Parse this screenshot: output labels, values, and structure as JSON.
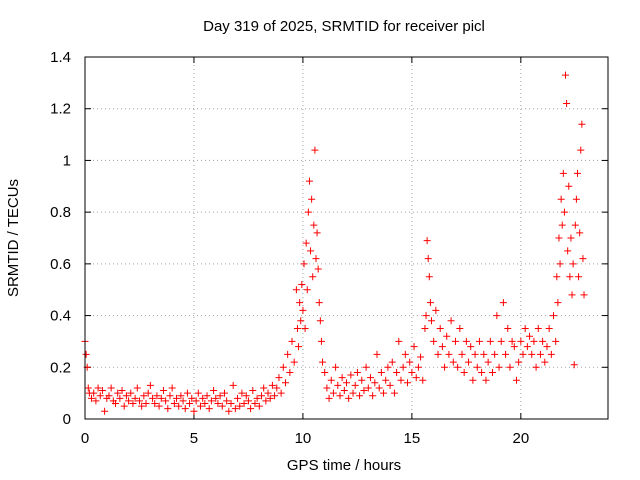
{
  "chart_data": {
    "type": "scatter",
    "title": "Day 319 of 2025, SRMTID for receiver picl",
    "xlabel": "GPS time / hours",
    "ylabel": "SRMTID / TECUs",
    "xlim": [
      0,
      24
    ],
    "ylim": [
      0,
      1.4
    ],
    "xticks": [
      0,
      5,
      10,
      15,
      20
    ],
    "yticks": [
      0,
      0.2,
      0.4,
      0.6,
      0.8,
      1,
      1.2,
      1.4
    ],
    "xtick_labels": [
      "0",
      "5",
      "10",
      "15",
      "20"
    ],
    "ytick_labels": [
      "0",
      "0.2",
      "0.4",
      "0.6",
      "0.8",
      "1",
      "1.2",
      "1.4"
    ],
    "grid": true,
    "marker": "+",
    "series": [
      {
        "name": "SRMTID",
        "color": "#ff0000",
        "points": [
          [
            0.0,
            0.3
          ],
          [
            0.05,
            0.25
          ],
          [
            0.1,
            0.2
          ],
          [
            0.15,
            0.12
          ],
          [
            0.2,
            0.1
          ],
          [
            0.3,
            0.08
          ],
          [
            0.4,
            0.1
          ],
          [
            0.5,
            0.07
          ],
          [
            0.6,
            0.12
          ],
          [
            0.7,
            0.09
          ],
          [
            0.8,
            0.11
          ],
          [
            0.9,
            0.03
          ],
          [
            1.0,
            0.08
          ],
          [
            1.1,
            0.09
          ],
          [
            1.2,
            0.12
          ],
          [
            1.3,
            0.07
          ],
          [
            1.4,
            0.06
          ],
          [
            1.5,
            0.1
          ],
          [
            1.6,
            0.08
          ],
          [
            1.7,
            0.11
          ],
          [
            1.8,
            0.05
          ],
          [
            1.9,
            0.09
          ],
          [
            2.0,
            0.07
          ],
          [
            2.1,
            0.1
          ],
          [
            2.2,
            0.06
          ],
          [
            2.3,
            0.08
          ],
          [
            2.4,
            0.12
          ],
          [
            2.5,
            0.07
          ],
          [
            2.6,
            0.05
          ],
          [
            2.7,
            0.09
          ],
          [
            2.8,
            0.06
          ],
          [
            2.9,
            0.1
          ],
          [
            3.0,
            0.13
          ],
          [
            3.1,
            0.08
          ],
          [
            3.2,
            0.06
          ],
          [
            3.3,
            0.09
          ],
          [
            3.4,
            0.05
          ],
          [
            3.5,
            0.08
          ],
          [
            3.6,
            0.11
          ],
          [
            3.7,
            0.07
          ],
          [
            3.8,
            0.04
          ],
          [
            3.9,
            0.09
          ],
          [
            4.0,
            0.12
          ],
          [
            4.1,
            0.06
          ],
          [
            4.2,
            0.08
          ],
          [
            4.3,
            0.05
          ],
          [
            4.4,
            0.09
          ],
          [
            4.5,
            0.07
          ],
          [
            4.6,
            0.04
          ],
          [
            4.7,
            0.1
          ],
          [
            4.8,
            0.06
          ],
          [
            4.9,
            0.08
          ],
          [
            5.0,
            0.03
          ],
          [
            5.1,
            0.07
          ],
          [
            5.2,
            0.1
          ],
          [
            5.3,
            0.05
          ],
          [
            5.4,
            0.08
          ],
          [
            5.5,
            0.06
          ],
          [
            5.6,
            0.09
          ],
          [
            5.7,
            0.04
          ],
          [
            5.8,
            0.07
          ],
          [
            5.9,
            0.11
          ],
          [
            6.0,
            0.08
          ],
          [
            6.1,
            0.06
          ],
          [
            6.2,
            0.09
          ],
          [
            6.3,
            0.05
          ],
          [
            6.4,
            0.1
          ],
          [
            6.5,
            0.07
          ],
          [
            6.6,
            0.03
          ],
          [
            6.7,
            0.06
          ],
          [
            6.8,
            0.13
          ],
          [
            6.9,
            0.04
          ],
          [
            7.0,
            0.08
          ],
          [
            7.1,
            0.05
          ],
          [
            7.2,
            0.1
          ],
          [
            7.3,
            0.06
          ],
          [
            7.4,
            0.09
          ],
          [
            7.5,
            0.07
          ],
          [
            7.6,
            0.04
          ],
          [
            7.7,
            0.11
          ],
          [
            7.8,
            0.06
          ],
          [
            7.9,
            0.08
          ],
          [
            8.0,
            0.05
          ],
          [
            8.1,
            0.09
          ],
          [
            8.2,
            0.12
          ],
          [
            8.3,
            0.07
          ],
          [
            8.4,
            0.1
          ],
          [
            8.5,
            0.08
          ],
          [
            8.6,
            0.13
          ],
          [
            8.7,
            0.09
          ],
          [
            8.8,
            0.12
          ],
          [
            8.9,
            0.16
          ],
          [
            9.0,
            0.1
          ],
          [
            9.1,
            0.2
          ],
          [
            9.2,
            0.14
          ],
          [
            9.3,
            0.25
          ],
          [
            9.4,
            0.18
          ],
          [
            9.5,
            0.3
          ],
          [
            9.6,
            0.22
          ],
          [
            9.7,
            0.5
          ],
          [
            9.75,
            0.35
          ],
          [
            9.8,
            0.28
          ],
          [
            9.85,
            0.45
          ],
          [
            9.9,
            0.38
          ],
          [
            9.95,
            0.52
          ],
          [
            10.0,
            0.42
          ],
          [
            10.05,
            0.6
          ],
          [
            10.1,
            0.35
          ],
          [
            10.15,
            0.68
          ],
          [
            10.2,
            0.5
          ],
          [
            10.25,
            0.8
          ],
          [
            10.3,
            0.92
          ],
          [
            10.35,
            0.65
          ],
          [
            10.4,
            0.85
          ],
          [
            10.45,
            0.55
          ],
          [
            10.5,
            0.75
          ],
          [
            10.55,
            1.04
          ],
          [
            10.6,
            0.62
          ],
          [
            10.65,
            0.72
          ],
          [
            10.7,
            0.58
          ],
          [
            10.75,
            0.45
          ],
          [
            10.8,
            0.38
          ],
          [
            10.85,
            0.3
          ],
          [
            10.9,
            0.22
          ],
          [
            11.0,
            0.18
          ],
          [
            11.1,
            0.12
          ],
          [
            11.2,
            0.08
          ],
          [
            11.3,
            0.15
          ],
          [
            11.4,
            0.1
          ],
          [
            11.5,
            0.2
          ],
          [
            11.6,
            0.13
          ],
          [
            11.7,
            0.09
          ],
          [
            11.8,
            0.16
          ],
          [
            11.9,
            0.11
          ],
          [
            12.0,
            0.14
          ],
          [
            12.1,
            0.08
          ],
          [
            12.2,
            0.17
          ],
          [
            12.3,
            0.1
          ],
          [
            12.4,
            0.13
          ],
          [
            12.5,
            0.18
          ],
          [
            12.6,
            0.09
          ],
          [
            12.7,
            0.15
          ],
          [
            12.8,
            0.11
          ],
          [
            12.9,
            0.2
          ],
          [
            13.0,
            0.12
          ],
          [
            13.1,
            0.16
          ],
          [
            13.2,
            0.09
          ],
          [
            13.3,
            0.14
          ],
          [
            13.4,
            0.25
          ],
          [
            13.5,
            0.12
          ],
          [
            13.6,
            0.18
          ],
          [
            13.7,
            0.1
          ],
          [
            13.8,
            0.15
          ],
          [
            13.9,
            0.2
          ],
          [
            14.0,
            0.13
          ],
          [
            14.1,
            0.22
          ],
          [
            14.2,
            0.1
          ],
          [
            14.3,
            0.18
          ],
          [
            14.4,
            0.3
          ],
          [
            14.5,
            0.15
          ],
          [
            14.6,
            0.2
          ],
          [
            14.7,
            0.25
          ],
          [
            14.8,
            0.14
          ],
          [
            14.9,
            0.22
          ],
          [
            15.0,
            0.18
          ],
          [
            15.1,
            0.28
          ],
          [
            15.2,
            0.16
          ],
          [
            15.3,
            0.2
          ],
          [
            15.4,
            0.24
          ],
          [
            15.5,
            0.15
          ],
          [
            15.6,
            0.35
          ],
          [
            15.65,
            0.4
          ],
          [
            15.7,
            0.69
          ],
          [
            15.75,
            0.62
          ],
          [
            15.8,
            0.55
          ],
          [
            15.85,
            0.45
          ],
          [
            15.9,
            0.38
          ],
          [
            16.0,
            0.3
          ],
          [
            16.1,
            0.42
          ],
          [
            16.2,
            0.25
          ],
          [
            16.3,
            0.35
          ],
          [
            16.4,
            0.28
          ],
          [
            16.5,
            0.2
          ],
          [
            16.6,
            0.32
          ],
          [
            16.7,
            0.25
          ],
          [
            16.8,
            0.38
          ],
          [
            16.9,
            0.22
          ],
          [
            17.0,
            0.3
          ],
          [
            17.1,
            0.2
          ],
          [
            17.2,
            0.35
          ],
          [
            17.3,
            0.25
          ],
          [
            17.4,
            0.18
          ],
          [
            17.5,
            0.3
          ],
          [
            17.6,
            0.22
          ],
          [
            17.7,
            0.28
          ],
          [
            17.8,
            0.15
          ],
          [
            17.9,
            0.25
          ],
          [
            18.0,
            0.2
          ],
          [
            18.1,
            0.3
          ],
          [
            18.2,
            0.18
          ],
          [
            18.3,
            0.25
          ],
          [
            18.4,
            0.15
          ],
          [
            18.5,
            0.22
          ],
          [
            18.6,
            0.3
          ],
          [
            18.7,
            0.18
          ],
          [
            18.8,
            0.25
          ],
          [
            18.9,
            0.4
          ],
          [
            19.0,
            0.2
          ],
          [
            19.1,
            0.3
          ],
          [
            19.2,
            0.45
          ],
          [
            19.3,
            0.25
          ],
          [
            19.4,
            0.35
          ],
          [
            19.5,
            0.2
          ],
          [
            19.6,
            0.3
          ],
          [
            19.7,
            0.28
          ],
          [
            19.8,
            0.15
          ],
          [
            19.9,
            0.22
          ],
          [
            20.0,
            0.3
          ],
          [
            20.1,
            0.25
          ],
          [
            20.2,
            0.35
          ],
          [
            20.3,
            0.28
          ],
          [
            20.4,
            0.32
          ],
          [
            20.5,
            0.25
          ],
          [
            20.6,
            0.3
          ],
          [
            20.7,
            0.2
          ],
          [
            20.8,
            0.35
          ],
          [
            20.9,
            0.25
          ],
          [
            21.0,
            0.3
          ],
          [
            21.1,
            0.22
          ],
          [
            21.2,
            0.28
          ],
          [
            21.3,
            0.35
          ],
          [
            21.4,
            0.25
          ],
          [
            21.5,
            0.4
          ],
          [
            21.6,
            0.3
          ],
          [
            21.65,
            0.55
          ],
          [
            21.7,
            0.45
          ],
          [
            21.75,
            0.7
          ],
          [
            21.8,
            0.6
          ],
          [
            21.85,
            0.85
          ],
          [
            21.9,
            0.75
          ],
          [
            21.95,
            0.95
          ],
          [
            22.0,
            0.8
          ],
          [
            22.05,
            1.33
          ],
          [
            22.1,
            1.22
          ],
          [
            22.15,
            0.65
          ],
          [
            22.2,
            0.9
          ],
          [
            22.25,
            0.55
          ],
          [
            22.3,
            0.7
          ],
          [
            22.35,
            0.48
          ],
          [
            22.4,
            0.6
          ],
          [
            22.45,
            0.21
          ],
          [
            22.5,
            0.75
          ],
          [
            22.55,
            0.85
          ],
          [
            22.6,
            0.95
          ],
          [
            22.65,
            0.55
          ],
          [
            22.7,
            0.72
          ],
          [
            22.75,
            1.04
          ],
          [
            22.8,
            1.14
          ],
          [
            22.85,
            0.62
          ],
          [
            22.9,
            0.48
          ]
        ]
      }
    ]
  }
}
